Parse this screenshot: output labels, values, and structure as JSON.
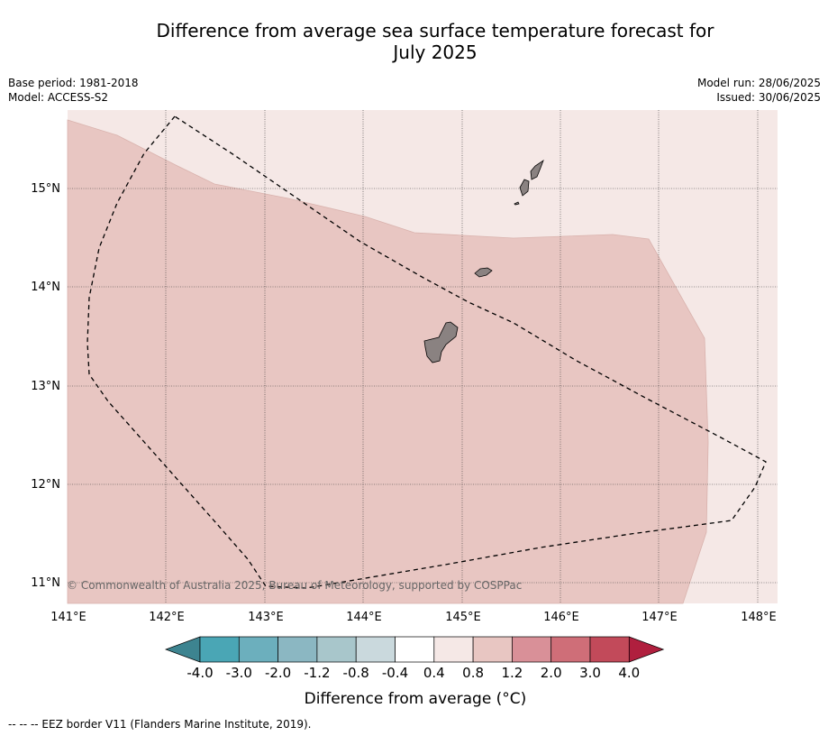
{
  "title_line1": "Difference from average sea surface temperature forecast for",
  "title_line2": "July 2025",
  "base_period": "Base period: 1981-2018",
  "model": "Model: ACCESS-S2",
  "model_run": "Model run: 28/06/2025",
  "issued": "Issued: 30/06/2025",
  "copyright": "© Commonwealth of Australia 2025, Bureau of Meteorology, supported by COSPPac",
  "footnote": "--  --  -- EEZ border V11 (Flanders Marine Institute, 2019).",
  "map": {
    "lon_labels": [
      "141°E",
      "142°E",
      "143°E",
      "144°E",
      "145°E",
      "146°E",
      "147°E",
      "148°E"
    ],
    "lat_labels": [
      "15°N",
      "14°N",
      "13°N",
      "12°N",
      "11°N"
    ],
    "colors": {
      "light_anomaly": "#f5e8e6",
      "moderate_anomaly": "#e8c6c2",
      "land": "#8a8281"
    }
  },
  "colorbar": {
    "title": "Difference from average (°C)",
    "tick_labels": [
      "-4.0",
      "-3.0",
      "-2.0",
      "-1.2",
      "-0.8",
      "-0.4",
      "0.4",
      "0.8",
      "1.2",
      "2.0",
      "3.0",
      "4.0"
    ],
    "colors": [
      "#3d8490",
      "#4aa6b5",
      "#6cafbd",
      "#8bb7c2",
      "#a8c6cb",
      "#cad9dd",
      "#ffffff",
      "#f5e8e6",
      "#e8c6c2",
      "#d99098",
      "#cf6e78",
      "#c24a5a",
      "#b01f3e"
    ]
  }
}
